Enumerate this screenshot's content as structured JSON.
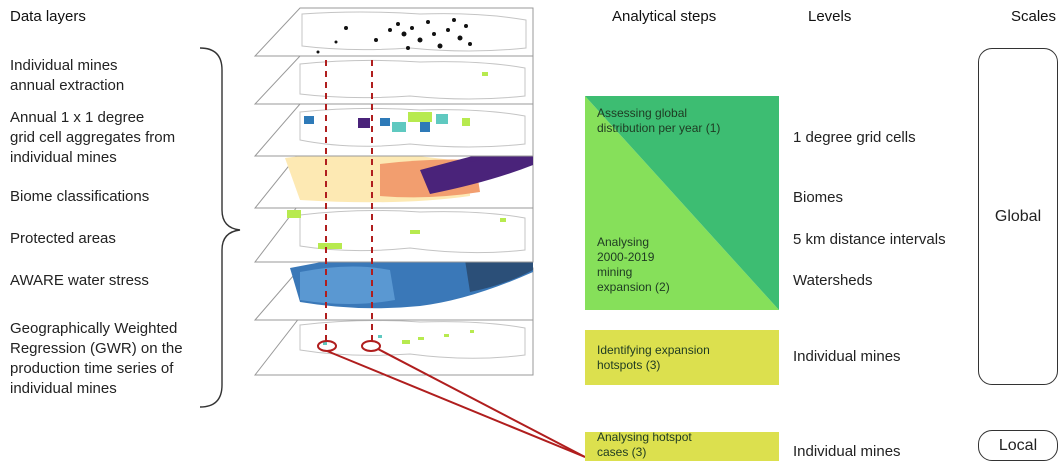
{
  "headers": {
    "data_layers": "Data layers",
    "analytical_steps": "Analytical steps",
    "levels": "Levels",
    "scales": "Scales"
  },
  "data_layers": [
    {
      "line1": "Individual mines",
      "line2": "annual extraction"
    },
    {
      "line1": "Annual 1 x 1 degree",
      "line2": "grid cell aggregates from",
      "line3": "individual mines"
    },
    {
      "line1": "Biome classifications"
    },
    {
      "line1": "Protected areas"
    },
    {
      "line1": "AWARE water stress"
    },
    {
      "line1": "Geographically Weighted",
      "line2": "Regression (GWR) on the",
      "line3": "production time series of",
      "line4": "individual mines"
    }
  ],
  "steps": [
    {
      "line1": "Assessing global",
      "line2": "distribution  per year (1)"
    },
    {
      "line1": "Analysing",
      "line2": "2000-2019",
      "line3": "mining",
      "line4": "expansion (2)"
    },
    {
      "line1": "Identifying expansion",
      "line2": "hotspots (3)"
    },
    {
      "line1": "Analysing hotspot",
      "line2": "cases (3)"
    }
  ],
  "levels": [
    "1 degree grid cells",
    "Biomes",
    "5 km distance intervals",
    "Watersheds",
    "Individual mines",
    "Individual mines"
  ],
  "scales": {
    "global": "Global",
    "local": "Local"
  },
  "colors": {
    "step_dark_green": "#3dbd72",
    "step_light_green": "#86e05a",
    "step_yellow": "#dce04e",
    "connector_red": "#b01e1e",
    "water_blue": "#3a78b8",
    "biome_purple": "#4a237a"
  }
}
